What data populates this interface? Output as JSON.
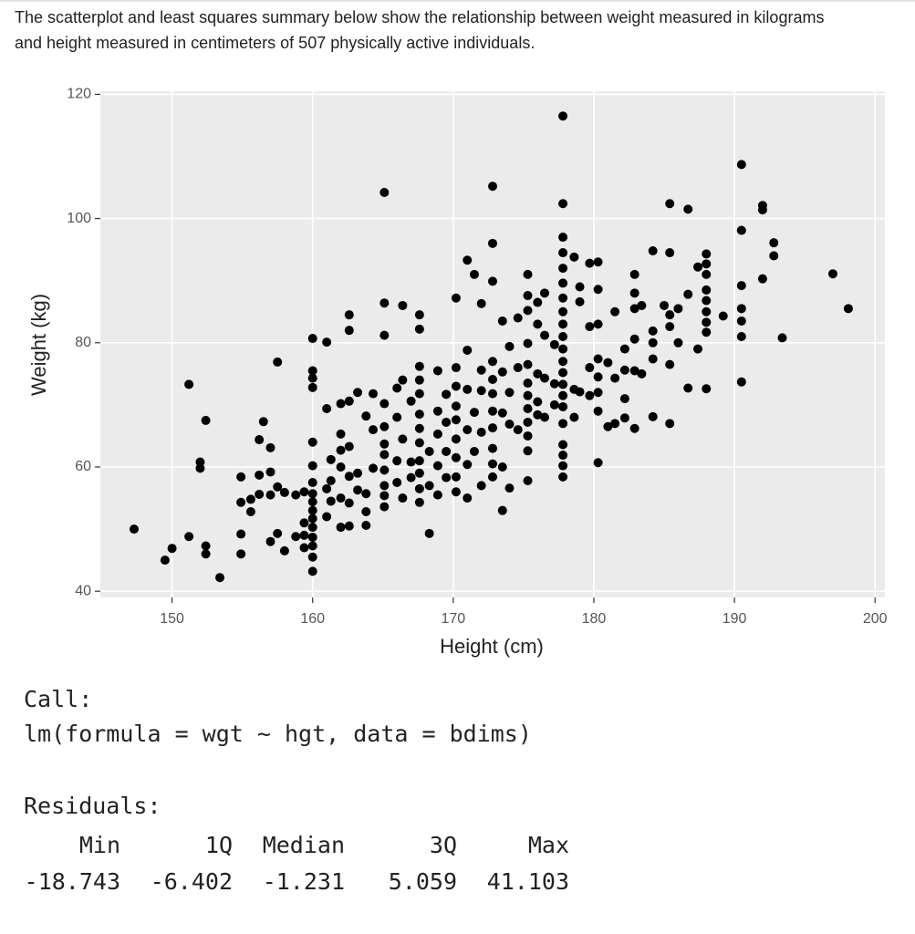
{
  "intro": "The scatterplot and least squares summary below show the relationship between weight measured in kilograms and height measured in centimeters of 507 physically active individuals.",
  "chart_data": {
    "type": "scatter",
    "x_label": "Height (cm)",
    "y_label": "Weight (kg)",
    "color": "#000000",
    "grid": true,
    "xlim": [
      144.9,
      200.7
    ],
    "ylim": [
      39,
      120.5
    ],
    "xticks": [
      150,
      160,
      170,
      180,
      190,
      200
    ],
    "yticks": [
      40,
      60,
      80,
      100,
      120
    ],
    "x": [
      147.3,
      149.5,
      150.0,
      151.2,
      151.2,
      152.0,
      152.0,
      152.4,
      152.4,
      152.4,
      153.4,
      154.9,
      154.9,
      154.9,
      154.9,
      155.6,
      155.6,
      156.2,
      156.2,
      156.2,
      156.5,
      157.0,
      157.0,
      157.0,
      157.0,
      157.5,
      157.5,
      157.5,
      158.0,
      158.0,
      158.8,
      158.8,
      159.4,
      159.4,
      159.4,
      159.4,
      160.0,
      160.0,
      160.0,
      160.0,
      160.0,
      160.0,
      160.0,
      160.0,
      160.0,
      160.0,
      160.0,
      160.0,
      160.0,
      160.0,
      160.0,
      160.0,
      161.0,
      161.0,
      161.0,
      161.0,
      161.3,
      161.3,
      161.3,
      162.0,
      162.0,
      162.0,
      162.0,
      162.0,
      162.0,
      162.6,
      162.6,
      162.6,
      162.6,
      162.6,
      162.6,
      162.6,
      163.2,
      163.2,
      163.2,
      163.8,
      163.8,
      163.8,
      163.8,
      164.3,
      164.3,
      164.3,
      165.1,
      165.1,
      165.1,
      165.1,
      165.1,
      165.1,
      165.1,
      165.1,
      165.1,
      165.1,
      165.1,
      166.0,
      166.0,
      166.0,
      166.0,
      166.4,
      166.4,
      166.4,
      166.4,
      167.0,
      167.0,
      167.0,
      167.6,
      167.6,
      167.6,
      167.6,
      167.6,
      167.6,
      167.6,
      167.6,
      167.6,
      167.6,
      167.6,
      167.6,
      168.3,
      168.3,
      168.3,
      168.9,
      168.9,
      168.9,
      168.9,
      168.9,
      169.5,
      169.5,
      169.5,
      169.5,
      170.2,
      170.2,
      170.2,
      170.2,
      170.2,
      170.2,
      170.2,
      170.2,
      170.2,
      171.0,
      171.0,
      171.0,
      171.0,
      171.0,
      171.0,
      171.5,
      171.5,
      171.5,
      172.0,
      172.0,
      172.0,
      172.0,
      172.0,
      172.8,
      172.8,
      172.8,
      172.8,
      172.8,
      172.8,
      172.8,
      172.8,
      172.8,
      172.8,
      172.8,
      173.5,
      173.5,
      173.5,
      173.5,
      173.5,
      174.0,
      174.0,
      174.0,
      174.0,
      174.6,
      174.6,
      174.6,
      175.3,
      175.3,
      175.3,
      175.3,
      175.3,
      175.3,
      175.3,
      175.3,
      175.3,
      175.3,
      175.3,
      175.3,
      176.0,
      176.0,
      176.0,
      176.0,
      176.0,
      176.5,
      176.5,
      176.5,
      176.5,
      177.2,
      177.2,
      177.2,
      177.8,
      177.8,
      177.8,
      177.8,
      177.8,
      177.8,
      177.8,
      177.8,
      177.8,
      177.8,
      177.8,
      177.8,
      177.8,
      177.8,
      177.8,
      177.8,
      177.8,
      177.8,
      177.8,
      177.8,
      177.8,
      178.6,
      178.6,
      178.6,
      179.0,
      179.0,
      179.0,
      179.7,
      179.7,
      179.7,
      179.7,
      180.3,
      180.3,
      180.3,
      180.3,
      180.3,
      180.3,
      180.3,
      180.3,
      181.0,
      181.0,
      181.5,
      181.5,
      181.5,
      182.2,
      182.2,
      182.2,
      182.2,
      182.9,
      182.9,
      182.9,
      182.9,
      182.9,
      182.9,
      183.4,
      183.4,
      184.2,
      184.2,
      184.2,
      184.2,
      184.2,
      185.0,
      185.4,
      185.4,
      185.4,
      185.4,
      185.4,
      185.4,
      186.0,
      186.0,
      186.7,
      186.7,
      186.7,
      187.4,
      187.4,
      188.0,
      188.0,
      188.0,
      188.0,
      188.0,
      188.0,
      188.0,
      188.0,
      188.0,
      189.2,
      190.5,
      190.5,
      190.5,
      190.5,
      190.5,
      190.5,
      190.5,
      192.0,
      192.0,
      192.0,
      192.8,
      192.8,
      193.4,
      197.0,
      198.1
    ],
    "values": [
      50.0,
      45.0,
      46.9,
      73.3,
      48.8,
      59.8,
      60.8,
      67.5,
      47.3,
      46.0,
      42.2,
      58.4,
      54.3,
      49.2,
      46.0,
      54.8,
      52.8,
      64.4,
      58.7,
      55.6,
      67.3,
      63.1,
      59.2,
      55.5,
      48.0,
      76.9,
      56.8,
      49.3,
      55.9,
      46.5,
      55.5,
      48.8,
      56.0,
      51.0,
      49.0,
      47.0,
      80.7,
      75.5,
      74.3,
      72.8,
      64.0,
      60.2,
      57.5,
      55.7,
      54.4,
      53.0,
      51.7,
      50.3,
      48.7,
      47.3,
      45.5,
      43.2,
      80.1,
      69.4,
      56.5,
      52.0,
      61.2,
      57.8,
      54.5,
      70.2,
      65.3,
      62.7,
      60.0,
      55.0,
      50.3,
      84.5,
      82.0,
      70.6,
      63.3,
      58.5,
      54.2,
      50.5,
      72.0,
      59.0,
      56.3,
      68.2,
      55.7,
      52.8,
      50.6,
      71.8,
      66.0,
      59.8,
      104.2,
      86.4,
      81.2,
      70.2,
      66.5,
      63.7,
      62.0,
      59.5,
      57.0,
      55.4,
      53.6,
      72.7,
      68.0,
      61.0,
      57.5,
      86.0,
      74.0,
      64.5,
      55.0,
      70.6,
      60.8,
      58.3,
      84.5,
      82.2,
      76.2,
      74.0,
      71.8,
      68.5,
      66.2,
      63.9,
      61.0,
      59.0,
      56.5,
      54.3,
      62.5,
      49.3,
      57.0,
      75.5,
      69.0,
      65.3,
      60.2,
      55.5,
      71.7,
      67.2,
      62.5,
      58.3,
      87.2,
      76.0,
      73.0,
      69.8,
      67.6,
      64.5,
      61.5,
      58.4,
      56.0,
      93.3,
      78.8,
      72.5,
      66.0,
      60.4,
      55.0,
      91.0,
      68.8,
      62.5,
      86.3,
      75.6,
      72.3,
      65.6,
      57.0,
      105.2,
      96.0,
      89.9,
      77.0,
      74.1,
      71.8,
      69.0,
      66.3,
      63.0,
      60.5,
      58.4,
      83.5,
      75.3,
      68.7,
      60.0,
      53.0,
      79.4,
      72.0,
      66.9,
      56.6,
      84.0,
      76.0,
      66.0,
      91.0,
      87.6,
      85.2,
      79.9,
      76.5,
      73.5,
      71.5,
      69.4,
      67.2,
      65.0,
      62.6,
      57.8,
      86.5,
      83.0,
      75.0,
      70.5,
      68.4,
      88.0,
      81.2,
      74.3,
      68.0,
      79.7,
      73.4,
      70.0,
      116.5,
      102.4,
      97.0,
      94.5,
      92.0,
      89.6,
      87.2,
      85.0,
      83.0,
      81.0,
      79.0,
      77.0,
      75.2,
      73.3,
      71.5,
      69.7,
      67.0,
      63.6,
      61.9,
      60.2,
      58.4,
      93.8,
      72.5,
      68.0,
      89.0,
      86.6,
      72.1,
      92.8,
      82.6,
      76.0,
      71.5,
      93.0,
      88.6,
      83.0,
      77.4,
      74.5,
      72.0,
      69.0,
      60.7,
      76.8,
      66.5,
      85.0,
      74.3,
      67.0,
      79.0,
      75.6,
      71.0,
      67.9,
      91.0,
      88.0,
      85.5,
      80.6,
      75.5,
      66.2,
      86.0,
      75.0,
      94.8,
      81.9,
      80.0,
      77.4,
      68.1,
      86.0,
      102.4,
      94.5,
      84.5,
      82.6,
      76.5,
      67.0,
      85.5,
      80.0,
      101.5,
      87.8,
      72.7,
      92.2,
      79.0,
      94.3,
      92.7,
      91.0,
      88.5,
      86.8,
      85.0,
      83.3,
      81.7,
      72.6,
      84.3,
      108.7,
      98.1,
      89.2,
      85.5,
      83.5,
      81.0,
      73.7,
      102.1,
      101.4,
      90.3,
      96.1,
      94.0,
      80.8,
      91.1,
      85.5
    ]
  },
  "output": {
    "call_label": "Call:",
    "call": "lm(formula = wgt ~ hgt, data = bdims)",
    "residuals_label": "Residuals:",
    "residuals": {
      "headers": [
        "Min",
        "1Q",
        "Median",
        "3Q",
        "Max"
      ],
      "values": [
        -18.743,
        -6.402,
        -1.231,
        5.059,
        41.103
      ]
    }
  }
}
